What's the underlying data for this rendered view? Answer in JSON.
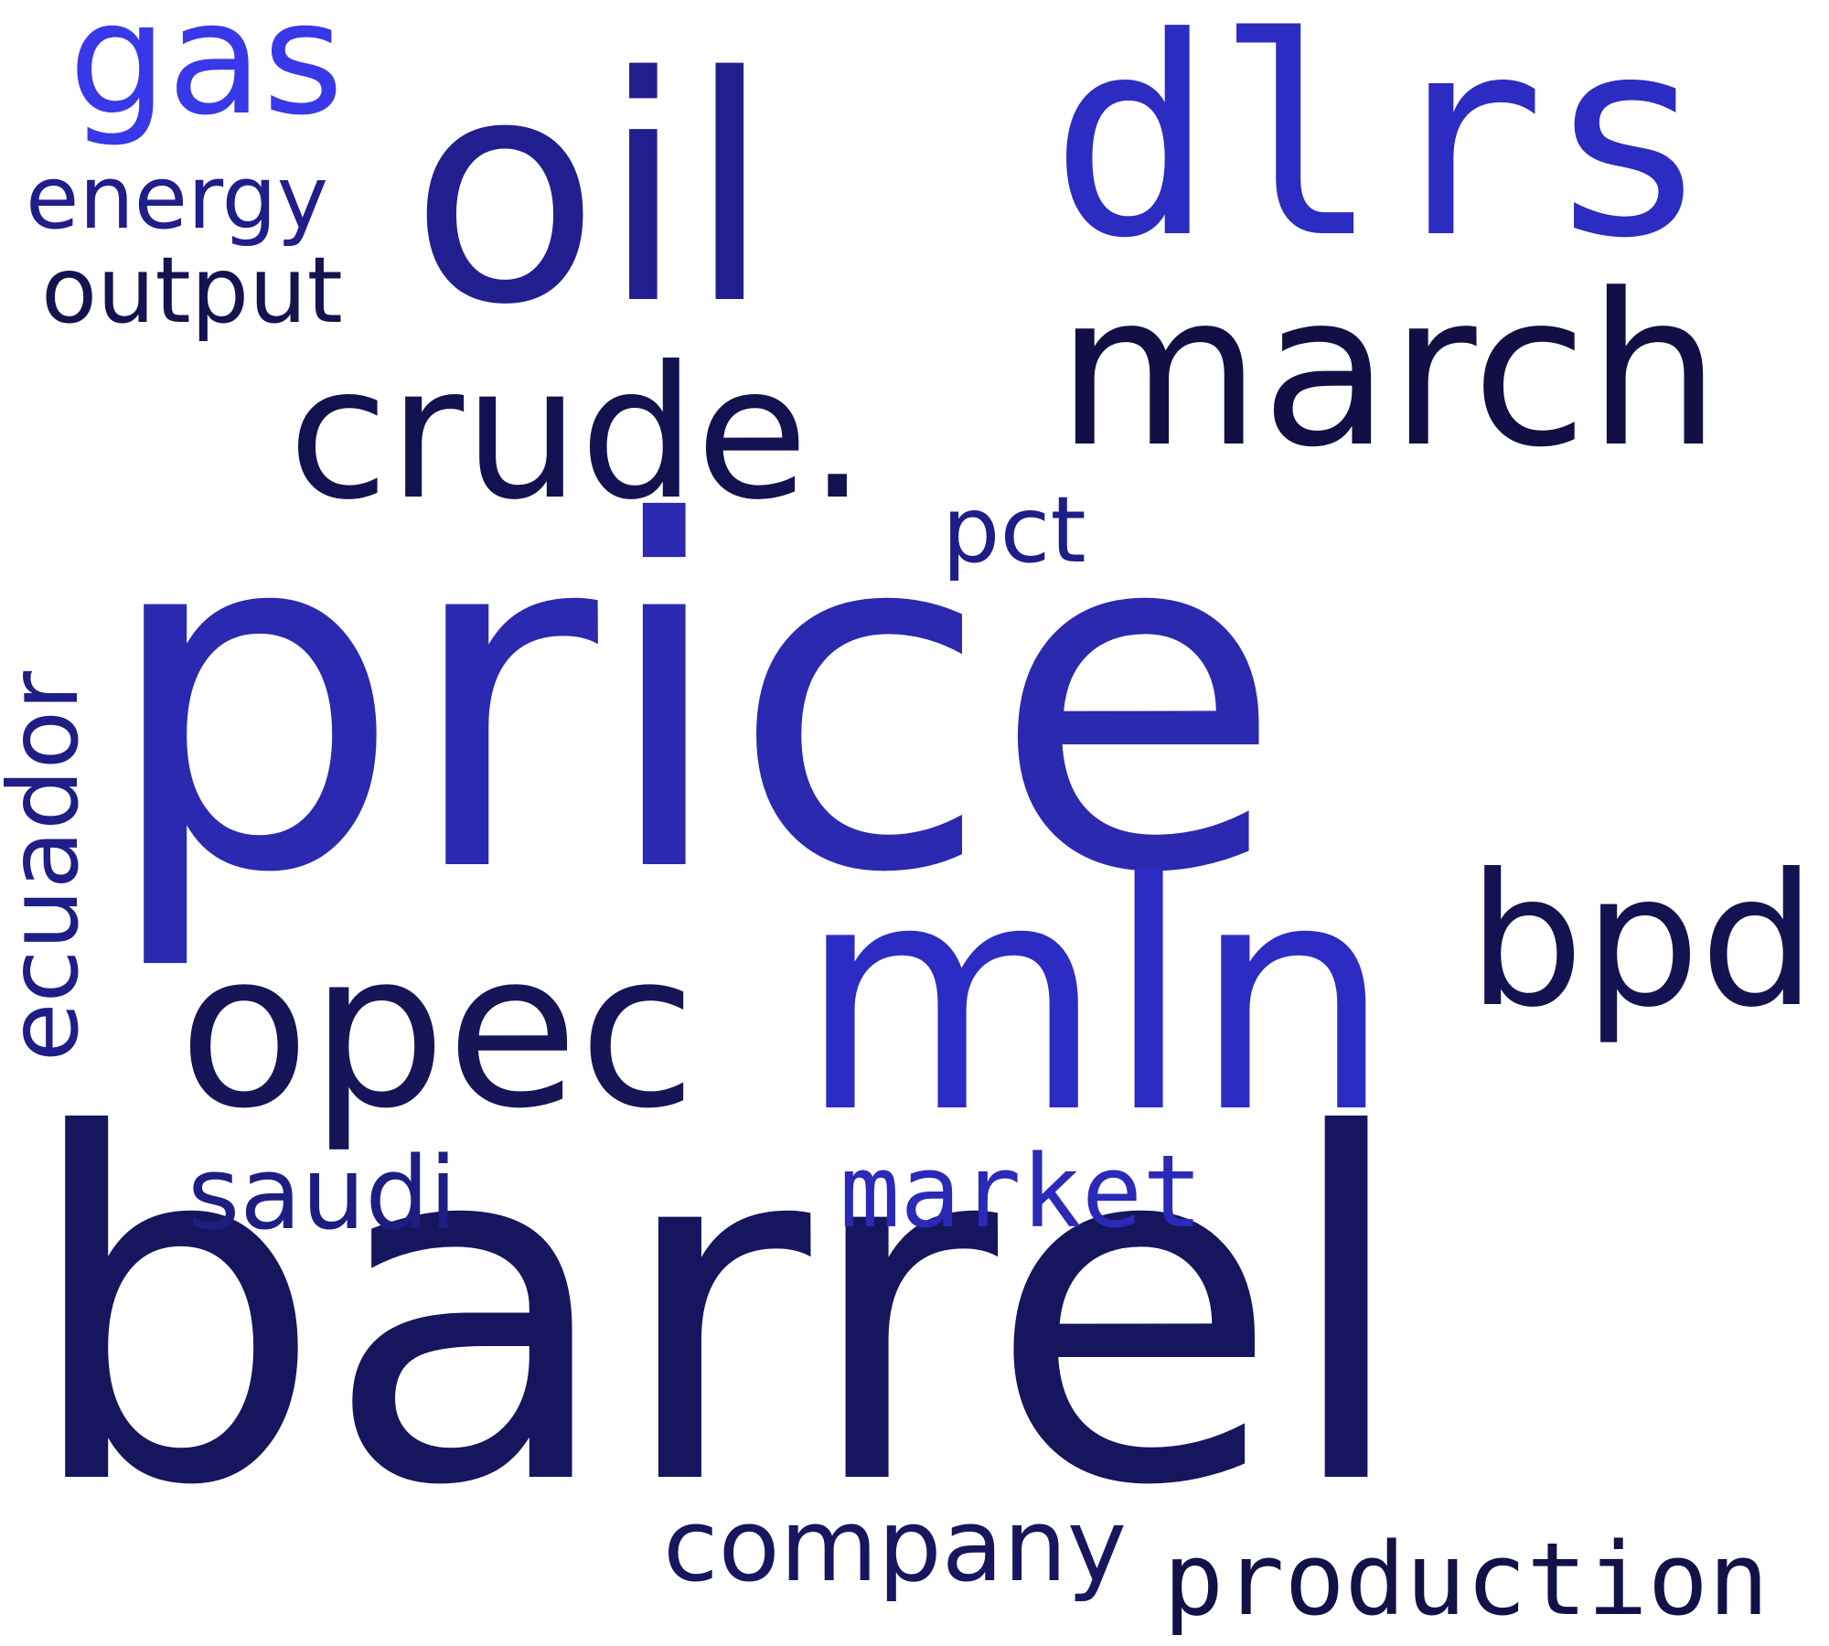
{
  "words": {
    "price": {
      "text": "price",
      "color": "#2a29b0"
    },
    "barrel": {
      "text": "barrel",
      "color": "#15165e"
    },
    "mln": {
      "text": "mln",
      "color": "#2c2bc4"
    },
    "oil": {
      "text": "oil",
      "color": "#211f8f"
    },
    "dlrs": {
      "text": "dlrs",
      "color": "#2c2bc2"
    },
    "march": {
      "text": "march",
      "color": "#110f45"
    },
    "opec": {
      "text": "opec",
      "color": "#151558"
    },
    "crude": {
      "text": "crude.",
      "color": "#131250"
    },
    "bpd": {
      "text": "bpd",
      "color": "#131352"
    },
    "gas": {
      "text": "gas",
      "color": "#3838e8"
    },
    "energy": {
      "text": "energy",
      "color": "#1f1e8a"
    },
    "output": {
      "text": "output",
      "color": "#14134f"
    },
    "ecuador": {
      "text": "ecuador",
      "color": "#1f1e86"
    },
    "pct": {
      "text": "pct",
      "color": "#1f1e88"
    },
    "saudi": {
      "text": "saudi",
      "color": "#1e1d82"
    },
    "market": {
      "text": "market",
      "color": "#2a29b8"
    },
    "company": {
      "text": "company",
      "color": "#17165f"
    },
    "production": {
      "text": "production",
      "color": "#121148"
    }
  }
}
